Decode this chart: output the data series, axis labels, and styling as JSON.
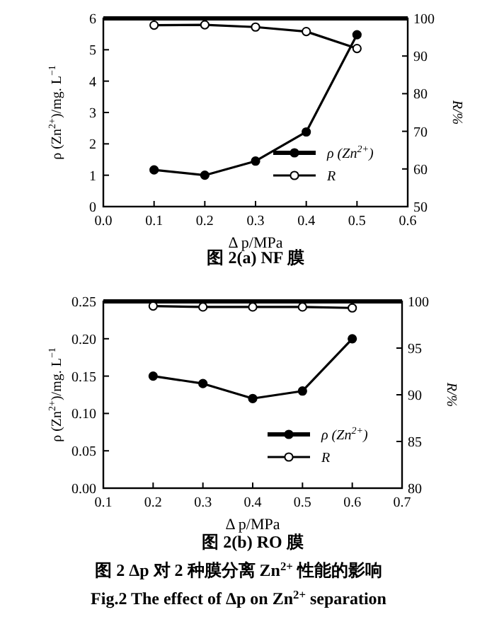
{
  "chart_data": [
    {
      "type": "line",
      "title": "图 2(a)  NF 膜",
      "xlabel": "Δ p/MPa",
      "ylabel": "ρ (Zn$^{2+}$)/mg. L$^{−1}$",
      "y2label": "R/%",
      "x": [
        0.1,
        0.2,
        0.3,
        0.4,
        0.5
      ],
      "xlim": [
        0,
        0.6
      ],
      "xticks": [
        {
          "value": 0,
          "label": "0.0"
        },
        0.1,
        0.2,
        0.3,
        0.4,
        0.5,
        0.6
      ],
      "ylim": [
        0,
        6
      ],
      "yticks": [
        0,
        1,
        2,
        3,
        4,
        5,
        6
      ],
      "y2lim": [
        50,
        100
      ],
      "y2ticks": [
        50,
        60,
        70,
        80,
        90,
        100
      ],
      "marker": "circle",
      "legend": "bottom right",
      "grid": false,
      "series": [
        {
          "name": "ρ (Zn$^{2+}$)",
          "color": "#000000",
          "values": [
            1.17,
            1.0,
            1.45,
            2.38,
            5.48
          ]
        },
        {
          "name": "R",
          "color": "#000000",
          "axis": "y2",
          "values": [
            98.2,
            98.3,
            97.7,
            96.5,
            92.0
          ]
        }
      ]
    },
    {
      "type": "line",
      "title": "图 2(b)  RO 膜",
      "xlabel": "Δ p/MPa",
      "ylabel": "ρ (Zn$^{2+}$)/mg. L$^{−1}$",
      "y2label": "R/%",
      "x": [
        0.2,
        0.3,
        0.4,
        0.5,
        0.6
      ],
      "xlim": [
        0.1,
        0.7
      ],
      "xticks": [
        0.1,
        0.2,
        0.3,
        0.4,
        0.5,
        0.6,
        0.7
      ],
      "ylim": [
        0,
        0.25
      ],
      "yticks": [
        {
          "value": 0,
          "label": "0.00"
        },
        0.05,
        {
          "value": 0.1,
          "label": "0.10"
        },
        0.15,
        {
          "value": 0.2,
          "label": "0.20"
        },
        0.25
      ],
      "y2lim": [
        80,
        100
      ],
      "y2ticks": [
        80,
        85,
        90,
        95,
        100
      ],
      "marker": "circle",
      "legend": "bottom right",
      "grid": false,
      "series": [
        {
          "name": "ρ (Zn$^{2+}$)",
          "color": "#000000",
          "values": [
            0.15,
            0.14,
            0.12,
            0.13,
            0.2
          ]
        },
        {
          "name": "R",
          "color": "#000000",
          "axis": "y2",
          "values": [
            99.5,
            99.4,
            99.4,
            99.4,
            99.3
          ]
        }
      ],
      "annotations": [
        "图 2  Δp 对 2 种膜分离 Zn$^{2+}$ 性能的影响",
        "Fig.2  The effect of Δp on Zn$^{2+}$ separation"
      ]
    }
  ]
}
